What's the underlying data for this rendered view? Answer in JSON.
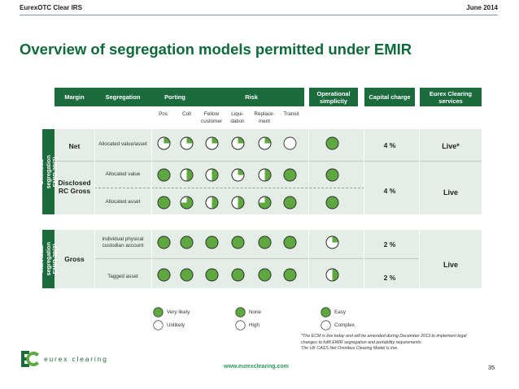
{
  "header": {
    "left": "EurexOTC Clear IRS",
    "right": "June 2014"
  },
  "title": "Overview of segregation models permitted under EMIR",
  "columns": {
    "margin": "Margin",
    "segregation": "Segregation",
    "porting": "Porting",
    "risk": "Risk",
    "operational": "Operational simplicity",
    "capital": "Capital charge",
    "services": "Eurex Clearing services"
  },
  "subcolumns": {
    "pos": "Pos",
    "coll": "Coll",
    "fellow": "Fellow customer",
    "liquidation": "Liqui-dation",
    "replacement": "Replace-ment",
    "transit": "Transit"
  },
  "groups": {
    "omnibus": "Omnibus segregation EMIR 39(2)",
    "individual": "Individual segregation EMIR 39(3)"
  },
  "margins": {
    "net": "Net",
    "disclosed": "Disclosed RC Gross",
    "gross": "Gross"
  },
  "rows": [
    {
      "segregation": "Allocated value/asset",
      "fill": [
        0.25,
        0.25,
        0.25,
        0.25,
        0.25,
        0,
        1
      ],
      "capital": "4 %",
      "services": "Live*"
    },
    {
      "segregation": "Allocated value",
      "fill": [
        1,
        0.5,
        0.5,
        0.25,
        0.5,
        1,
        1
      ],
      "capital": "4 %",
      "services": "Live"
    },
    {
      "segregation": "Allocated asset",
      "fill": [
        1,
        0.75,
        0.5,
        0.5,
        0.75,
        1,
        1
      ]
    },
    {
      "segregation": "Individual physical custodian account",
      "fill": [
        1,
        1,
        1,
        1,
        1,
        1,
        0.25
      ],
      "capital": "2 %",
      "services": "Live"
    },
    {
      "segregation": "Tagged asset",
      "fill": [
        1,
        1,
        1,
        1,
        1,
        1,
        0.5
      ],
      "capital": "2 %"
    }
  ],
  "legend": [
    {
      "fill": 1,
      "label": "Very likely"
    },
    {
      "fill": 0,
      "label": "Unlikely"
    },
    {
      "fill": 1,
      "label": "None"
    },
    {
      "fill": 0,
      "label": "High"
    },
    {
      "fill": 1,
      "label": "Easy"
    },
    {
      "fill": 0,
      "label": "Complex"
    }
  ],
  "footnote": [
    "*The ECM is live today and will be amended during December 2013 to implement legal",
    "changes to fulfil EMIR segregation and portability requirements.",
    "The UK CASS Net Omnibus Clearing Model is live."
  ],
  "logo_text": "eurex clearing",
  "url": "www.eurexclearing.com",
  "page_number": "35",
  "colors": {
    "green": "#5ea83f",
    "dark_green": "#1c6b3d",
    "band": "#e4eee6",
    "title": "#0e6a3a"
  }
}
